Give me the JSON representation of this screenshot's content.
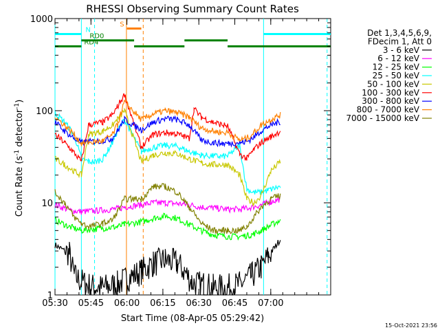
{
  "chart_data": {
    "type": "line",
    "title": "RHESSI Observing Summary Count Rates",
    "xlabel": "Start Time (08-Apr-05 05:29:42)",
    "ylabel_parts": [
      "Count Rate (s",
      "-1",
      " detector",
      "-1",
      ")"
    ],
    "yscale": "log",
    "ylim": [
      1,
      1000
    ],
    "xlim": [
      330,
      445
    ],
    "x_unit": "minutes after 00:00 UT",
    "x_ticks": [
      {
        "x": 330,
        "label": "05:30"
      },
      {
        "x": 345,
        "label": "05:45"
      },
      {
        "x": 360,
        "label": "06:00"
      },
      {
        "x": 375,
        "label": "06:15"
      },
      {
        "x": 390,
        "label": "06:30"
      },
      {
        "x": 405,
        "label": "06:45"
      },
      {
        "x": 420,
        "label": "07:00"
      }
    ],
    "y_ticks": [
      {
        "y": 1,
        "label": "1"
      },
      {
        "y": 10,
        "label": "10"
      },
      {
        "y": 100,
        "label": "100"
      },
      {
        "y": 1000,
        "label": "1000"
      }
    ],
    "legend_header": [
      "Det 1,3,4,5,6,9,",
      "FDecim 1, Att 0"
    ],
    "legend_placement": "outside-right",
    "series": [
      {
        "name": "3 - 6 keV",
        "color": "#000000",
        "x": [
          330,
          336,
          338,
          341,
          343,
          347,
          350,
          356,
          360,
          366,
          371,
          376,
          381,
          384,
          387,
          389,
          392,
          396,
          402,
          407,
          412,
          416,
          419,
          422,
          424
        ],
        "y": [
          3.5,
          2.8,
          1.6,
          1.4,
          1.3,
          1.2,
          1.2,
          1.3,
          1.5,
          1.8,
          2.2,
          2.4,
          2.2,
          1.8,
          1.4,
          1.3,
          1.3,
          1.2,
          1.2,
          1.3,
          1.6,
          2.0,
          2.6,
          3.4,
          4.0
        ]
      },
      {
        "name": "6 - 12 keV",
        "color": "#ff00ff",
        "x": [
          330,
          337,
          341,
          350,
          357,
          359,
          366,
          371,
          376,
          381,
          386,
          391,
          396,
          402,
          407,
          410,
          416,
          420,
          424
        ],
        "y": [
          9.5,
          8.2,
          8.0,
          8.3,
          8.7,
          9.0,
          9.5,
          10.0,
          10.0,
          9.8,
          9.5,
          9.0,
          8.8,
          8.5,
          8.5,
          8.7,
          9.5,
          10.3,
          11.0
        ]
      },
      {
        "name": "12 - 25 keV",
        "color": "#00ff00",
        "x": [
          330,
          336,
          341,
          346,
          351,
          356,
          359,
          366,
          371,
          376,
          381,
          386,
          391,
          396,
          402,
          407,
          412,
          416,
          420,
          424
        ],
        "y": [
          6.5,
          5.5,
          5.0,
          5.2,
          5.3,
          5.5,
          5.8,
          6.2,
          6.8,
          7.2,
          6.8,
          5.8,
          5.0,
          4.5,
          4.3,
          4.3,
          4.5,
          5.0,
          5.7,
          6.5
        ]
      },
      {
        "name": "25 - 50 keV",
        "color": "#00ffff",
        "x": [
          330,
          334,
          338,
          341,
          344,
          347,
          350,
          354,
          356,
          359,
          366,
          371,
          376,
          381,
          386,
          391,
          396,
          400,
          402,
          407,
          410,
          413,
          416,
          420,
          424
        ],
        "y": [
          95,
          75,
          55,
          30,
          28,
          28,
          30,
          45,
          60,
          80,
          36,
          40,
          42,
          41,
          36,
          33,
          32,
          32,
          32,
          42,
          14,
          13,
          13,
          14,
          15
        ]
      },
      {
        "name": "50 - 100 keV",
        "color": "#c8c800",
        "x": [
          330,
          334,
          338,
          341,
          344,
          350,
          354,
          356,
          359,
          366,
          371,
          376,
          381,
          386,
          391,
          396,
          400,
          402,
          407,
          410,
          413,
          416,
          420,
          424
        ],
        "y": [
          30,
          26,
          22,
          20,
          55,
          60,
          70,
          80,
          100,
          28,
          33,
          35,
          34,
          30,
          27,
          26,
          26,
          26,
          20,
          11,
          10,
          12,
          22,
          28
        ]
      },
      {
        "name": "100 - 300 keV",
        "color": "#ff0000",
        "x": [
          330,
          334,
          338,
          341,
          344,
          350,
          354,
          356,
          359,
          366,
          371,
          376,
          381,
          386,
          388,
          391,
          396,
          400,
          402,
          407,
          410,
          413,
          416,
          420,
          424
        ],
        "y": [
          55,
          45,
          35,
          28,
          70,
          75,
          90,
          110,
          150,
          40,
          55,
          58,
          56,
          50,
          105,
          85,
          75,
          70,
          68,
          34,
          30,
          38,
          45,
          52,
          60
        ]
      },
      {
        "name": "300 - 800 keV",
        "color": "#0000ff",
        "x": [
          330,
          334,
          338,
          341,
          344,
          350,
          354,
          356,
          359,
          366,
          371,
          376,
          381,
          386,
          391,
          396,
          400,
          402,
          407,
          410,
          413,
          416,
          420,
          424
        ],
        "y": [
          75,
          60,
          50,
          45,
          46,
          47,
          50,
          60,
          80,
          62,
          75,
          82,
          80,
          70,
          48,
          45,
          44,
          44,
          45,
          46,
          52,
          60,
          70,
          76
        ]
      },
      {
        "name": "800 - 7000 keV",
        "color": "#ff8000",
        "x": [
          330,
          334,
          338,
          341,
          344,
          350,
          354,
          356,
          359,
          366,
          371,
          376,
          381,
          386,
          391,
          396,
          400,
          402,
          407,
          410,
          413,
          416,
          420,
          424
        ],
        "y": [
          85,
          70,
          55,
          44,
          45,
          47,
          55,
          70,
          125,
          80,
          92,
          100,
          95,
          85,
          65,
          60,
          58,
          58,
          48,
          50,
          58,
          70,
          80,
          90
        ]
      },
      {
        "name": "7000 - 15000 keV",
        "color": "#808000",
        "x": [
          330,
          334,
          338,
          341,
          344,
          350,
          354,
          356,
          359,
          366,
          371,
          376,
          381,
          386,
          391,
          396,
          400,
          402,
          407,
          410,
          413,
          416,
          420,
          424
        ],
        "y": [
          13,
          10,
          7,
          6,
          5.5,
          6,
          6.5,
          8,
          11,
          11,
          15,
          15,
          13,
          9,
          6,
          5,
          5,
          5,
          5,
          5.5,
          7,
          9,
          11,
          12
        ]
      }
    ],
    "annotations": [
      {
        "text": "N",
        "color": "#00ffff",
        "level": 680,
        "segments": [
          [
            330,
            341
          ],
          [
            417,
            445
          ]
        ]
      },
      {
        "text": "RD0",
        "color": "#008000",
        "level": 580,
        "segments": [
          [
            341,
            363
          ]
        ]
      },
      {
        "text": "RD4",
        "color": "#008000",
        "level": 500,
        "segments": [
          [
            330,
            341
          ],
          [
            363,
            384
          ],
          [
            402,
            445
          ]
        ]
      },
      {
        "text": "",
        "color": "#008000",
        "level": 580,
        "segments": [
          [
            384,
            402
          ]
        ]
      },
      {
        "text": "S",
        "color": "#ff8000",
        "level": 780,
        "segments": [
          [
            360,
            366
          ]
        ]
      }
    ],
    "vlines": [
      {
        "x": 330,
        "color": "#00ffff",
        "style": "solid"
      },
      {
        "x": 341,
        "color": "#00ffff",
        "style": "solid"
      },
      {
        "x": 346.5,
        "color": "#00ffff",
        "style": "dashed"
      },
      {
        "x": 417,
        "color": "#00ffff",
        "style": "solid"
      },
      {
        "x": 443.5,
        "color": "#00ffff",
        "style": "dashed"
      },
      {
        "x": 359.8,
        "color": "#ff8000",
        "style": "solid"
      },
      {
        "x": 366.8,
        "color": "#ff8000",
        "style": "dashed"
      }
    ],
    "footer": "15-Oct-2021 23:56"
  }
}
